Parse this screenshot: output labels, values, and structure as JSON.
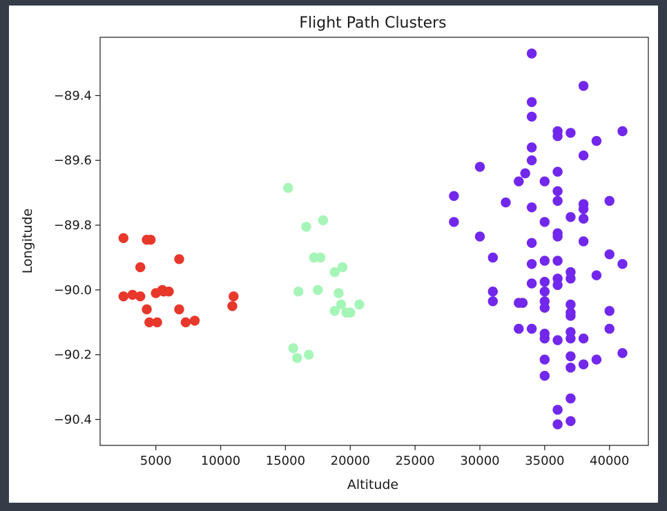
{
  "chart_data": {
    "type": "scatter",
    "title": "Flight Path Clusters",
    "xlabel": "Altitude",
    "ylabel": "Longitude",
    "xlim": [
      700,
      43000
    ],
    "ylim": [
      -90.48,
      -89.22
    ],
    "x_ticks": [
      5000,
      10000,
      15000,
      20000,
      25000,
      30000,
      35000,
      40000
    ],
    "y_ticks": [
      -89.4,
      -89.6,
      -89.8,
      -90.0,
      -90.2,
      -90.4
    ],
    "y_tick_labels": [
      "−89.4",
      "−89.6",
      "−89.8",
      "−90.0",
      "−90.2",
      "−90.4"
    ],
    "grid": false,
    "legend": "none",
    "series": [
      {
        "color": "#e8372b",
        "points": [
          [
            2500,
            -89.84
          ],
          [
            2500,
            -90.02
          ],
          [
            3200,
            -90.015
          ],
          [
            3800,
            -90.02
          ],
          [
            3800,
            -89.93
          ],
          [
            4300,
            -89.845
          ],
          [
            4300,
            -90.06
          ],
          [
            4500,
            -90.1
          ],
          [
            4600,
            -89.845
          ],
          [
            5000,
            -90.01
          ],
          [
            5100,
            -90.1
          ],
          [
            5500,
            -90.0
          ],
          [
            5600,
            -90.005
          ],
          [
            6000,
            -90.005
          ],
          [
            6800,
            -89.905
          ],
          [
            6800,
            -90.06
          ],
          [
            7300,
            -90.1
          ],
          [
            8000,
            -90.095
          ],
          [
            10900,
            -90.05
          ],
          [
            11000,
            -90.02
          ]
        ]
      },
      {
        "color": "#a6f5b8",
        "points": [
          [
            15200,
            -89.685
          ],
          [
            15600,
            -90.18
          ],
          [
            15900,
            -90.21
          ],
          [
            16000,
            -90.005
          ],
          [
            16600,
            -89.805
          ],
          [
            16800,
            -90.2
          ],
          [
            17200,
            -89.9
          ],
          [
            17500,
            -90.0
          ],
          [
            17700,
            -89.9
          ],
          [
            17900,
            -89.785
          ],
          [
            18800,
            -89.945
          ],
          [
            18800,
            -90.065
          ],
          [
            19100,
            -90.01
          ],
          [
            19300,
            -90.045
          ],
          [
            19400,
            -89.93
          ],
          [
            19700,
            -90.07
          ],
          [
            20000,
            -90.07
          ],
          [
            20700,
            -90.045
          ]
        ]
      },
      {
        "color": "#7227ec",
        "points": [
          [
            28000,
            -89.71
          ],
          [
            28000,
            -89.79
          ],
          [
            30000,
            -89.62
          ],
          [
            30000,
            -89.835
          ],
          [
            31000,
            -89.9
          ],
          [
            31000,
            -90.005
          ],
          [
            31000,
            -90.035
          ],
          [
            32000,
            -89.73
          ],
          [
            33000,
            -89.665
          ],
          [
            33000,
            -90.04
          ],
          [
            33000,
            -90.12
          ],
          [
            33300,
            -90.04
          ],
          [
            33500,
            -89.64
          ],
          [
            34000,
            -89.27
          ],
          [
            34000,
            -89.42
          ],
          [
            34000,
            -89.465
          ],
          [
            34000,
            -89.56
          ],
          [
            34000,
            -89.6
          ],
          [
            34000,
            -89.745
          ],
          [
            34000,
            -89.855
          ],
          [
            34000,
            -89.92
          ],
          [
            34000,
            -89.98
          ],
          [
            34000,
            -90.12
          ],
          [
            35000,
            -89.665
          ],
          [
            35000,
            -89.79
          ],
          [
            35000,
            -89.91
          ],
          [
            35000,
            -89.975
          ],
          [
            35000,
            -90.005
          ],
          [
            35000,
            -90.035
          ],
          [
            35000,
            -90.055
          ],
          [
            35000,
            -90.135
          ],
          [
            35000,
            -90.15
          ],
          [
            35000,
            -90.215
          ],
          [
            35000,
            -90.265
          ],
          [
            36000,
            -89.51
          ],
          [
            36000,
            -89.525
          ],
          [
            36000,
            -89.635
          ],
          [
            36000,
            -89.695
          ],
          [
            36000,
            -89.725
          ],
          [
            36000,
            -89.825
          ],
          [
            36000,
            -89.835
          ],
          [
            36000,
            -89.91
          ],
          [
            36000,
            -89.965
          ],
          [
            36000,
            -89.985
          ],
          [
            36000,
            -90.155
          ],
          [
            36000,
            -90.37
          ],
          [
            36000,
            -90.415
          ],
          [
            37000,
            -89.515
          ],
          [
            37000,
            -89.775
          ],
          [
            37000,
            -89.945
          ],
          [
            37000,
            -89.965
          ],
          [
            37000,
            -90.045
          ],
          [
            37000,
            -90.07
          ],
          [
            37000,
            -90.08
          ],
          [
            37000,
            -90.13
          ],
          [
            37000,
            -90.15
          ],
          [
            37000,
            -90.205
          ],
          [
            37000,
            -90.24
          ],
          [
            37000,
            -90.335
          ],
          [
            37000,
            -90.405
          ],
          [
            38000,
            -89.37
          ],
          [
            38000,
            -89.585
          ],
          [
            38000,
            -89.735
          ],
          [
            38000,
            -89.75
          ],
          [
            38000,
            -89.78
          ],
          [
            38000,
            -89.85
          ],
          [
            38000,
            -90.15
          ],
          [
            38000,
            -90.23
          ],
          [
            39000,
            -89.54
          ],
          [
            39000,
            -89.955
          ],
          [
            39000,
            -90.215
          ],
          [
            40000,
            -89.725
          ],
          [
            40000,
            -89.89
          ],
          [
            40000,
            -90.065
          ],
          [
            40000,
            -90.12
          ],
          [
            41000,
            -89.51
          ],
          [
            41000,
            -89.92
          ],
          [
            41000,
            -90.195
          ]
        ]
      }
    ]
  }
}
